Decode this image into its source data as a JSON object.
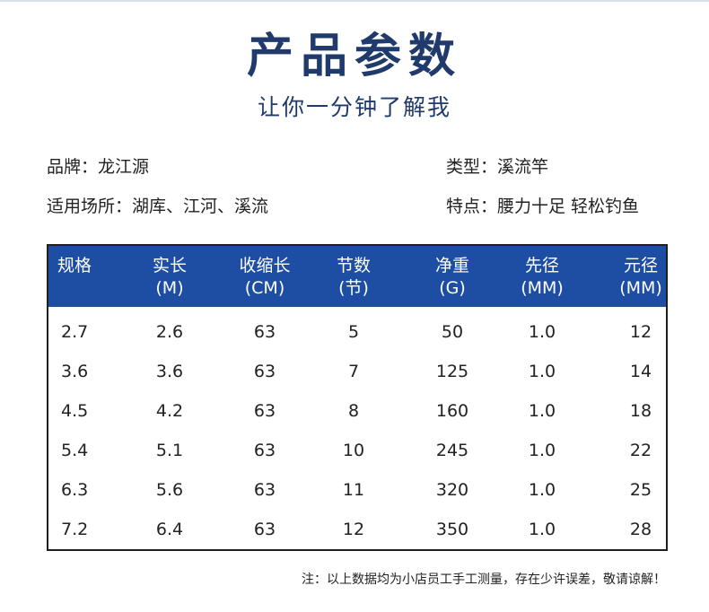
{
  "title": "产品参数",
  "subtitle": "让你一分钟了解我",
  "info": {
    "brand": "品牌：龙江源",
    "type": "类型：溪流竿",
    "venue": "适用场所：湖库、江河、溪流",
    "feature": "特点：腰力十足 轻松钓鱼"
  },
  "table": {
    "headers": [
      {
        "line1": "规格",
        "line2": ""
      },
      {
        "line1": "实长",
        "line2": "(M)"
      },
      {
        "line1": "收缩长",
        "line2": "(CM)"
      },
      {
        "line1": "节数",
        "line2": "(节)"
      },
      {
        "line1": "净重",
        "line2": "(G)"
      },
      {
        "line1": "先径",
        "line2": "(MM)"
      },
      {
        "line1": "元径",
        "line2": "(MM)"
      }
    ],
    "rows": [
      [
        "2.7",
        "2.6",
        "63",
        "5",
        "50",
        "1.0",
        "12"
      ],
      [
        "3.6",
        "3.6",
        "63",
        "7",
        "125",
        "1.0",
        "14"
      ],
      [
        "4.5",
        "4.2",
        "63",
        "8",
        "160",
        "1.0",
        "18"
      ],
      [
        "5.4",
        "5.1",
        "63",
        "10",
        "245",
        "1.0",
        "22"
      ],
      [
        "6.3",
        "5.6",
        "63",
        "11",
        "320",
        "1.0",
        "25"
      ],
      [
        "7.2",
        "6.4",
        "63",
        "12",
        "350",
        "1.0",
        "28"
      ]
    ]
  },
  "footnote": "注：以上数据均为小店员工手工测量，存在少许误差，敬请谅解！",
  "colors": {
    "header_bg": "#1e4ea4",
    "title": "#1f3a6b"
  }
}
